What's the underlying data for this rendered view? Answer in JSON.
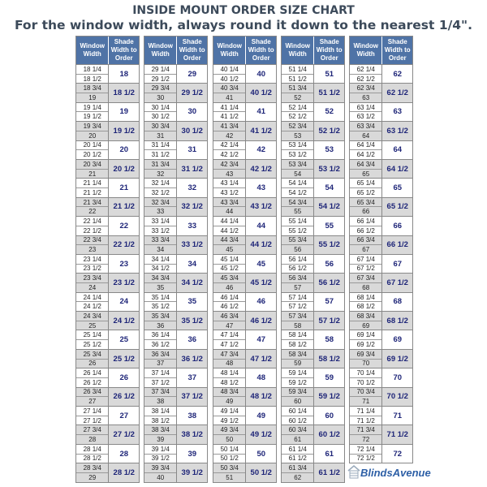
{
  "title": "INSIDE MOUNT ORDER SIZE CHART",
  "subtitle": "For the window width, always round it down to the nearest 1/4\".",
  "header": {
    "window": "Window Width",
    "shade": "Shade Width to Order"
  },
  "colors": {
    "header_bg": "#4f73a6",
    "alt_row": "#d9d9d9",
    "shade_text": "#1e2578"
  },
  "logo": "BlindsAvenue",
  "columns": [
    {
      "groups": [
        [
          "18",
          "18 1/4",
          "18 1/2"
        ],
        [
          "18 1/2",
          "18 3/4",
          "19"
        ],
        [
          "19",
          "19 1/4",
          "19 1/2"
        ],
        [
          "19 1/2",
          "19 3/4",
          "20"
        ],
        [
          "20",
          "20 1/4",
          "20 1/2"
        ],
        [
          "20 1/2",
          "20 3/4",
          "21"
        ],
        [
          "21",
          "21 1/4",
          "21 1/2"
        ],
        [
          "21 1/2",
          "21 3/4",
          "22"
        ],
        [
          "22",
          "22 1/4",
          "22 1/2"
        ],
        [
          "22 1/2",
          "22 3/4",
          "23"
        ],
        [
          "23",
          "23 1/4",
          "23 1/2"
        ],
        [
          "23 1/2",
          "23 3/4",
          "24"
        ],
        [
          "24",
          "24 1/4",
          "24 1/2"
        ],
        [
          "24 1/2",
          "24 3/4",
          "25"
        ],
        [
          "25",
          "25 1/4",
          "25 1/2"
        ],
        [
          "25 1/2",
          "25 3/4",
          "26"
        ],
        [
          "26",
          "26 1/4",
          "26 1/2"
        ],
        [
          "26 1/2",
          "26 3/4",
          "27"
        ],
        [
          "27",
          "27 1/4",
          "27 1/2"
        ],
        [
          "27 1/2",
          "27 3/4",
          "28"
        ],
        [
          "28",
          "28 1/4",
          "28 1/2"
        ],
        [
          "28 1/2",
          "28 3/4",
          "29"
        ]
      ]
    },
    {
      "groups": [
        [
          "29",
          "29 1/4",
          "29 1/2"
        ],
        [
          "29 1/2",
          "29 3/4",
          "30"
        ],
        [
          "30",
          "30 1/4",
          "30 1/2"
        ],
        [
          "30 1/2",
          "30 3/4",
          "31"
        ],
        [
          "31",
          "31 1/4",
          "31 1/2"
        ],
        [
          "31 1/2",
          "31 3/4",
          "32"
        ],
        [
          "32",
          "32 1/4",
          "32 1/2"
        ],
        [
          "32 1/2",
          "32 3/4",
          "33"
        ],
        [
          "33",
          "33 1/4",
          "33 1/2"
        ],
        [
          "33 1/2",
          "33 3/4",
          "34"
        ],
        [
          "34",
          "34 1/4",
          "34 1/2"
        ],
        [
          "34 1/2",
          "34 3/4",
          "35"
        ],
        [
          "35",
          "35 1/4",
          "35 1/2"
        ],
        [
          "35 1/2",
          "35 3/4",
          "36"
        ],
        [
          "36",
          "36 1/4",
          "36 1/2"
        ],
        [
          "36 1/2",
          "36 3/4",
          "37"
        ],
        [
          "37",
          "37 1/4",
          "37 1/2"
        ],
        [
          "37 1/2",
          "37 3/4",
          "38"
        ],
        [
          "38",
          "38 1/4",
          "38 1/2"
        ],
        [
          "38 1/2",
          "38 3/4",
          "39"
        ],
        [
          "39",
          "39 1/4",
          "39 1/2"
        ],
        [
          "39 1/2",
          "39 3/4",
          "40"
        ]
      ]
    },
    {
      "groups": [
        [
          "40",
          "40 1/4",
          "40 1/2"
        ],
        [
          "40 1/2",
          "40 3/4",
          "41"
        ],
        [
          "41",
          "41 1/4",
          "41 1/2"
        ],
        [
          "41 1/2",
          "41 3/4",
          "42"
        ],
        [
          "42",
          "42 1/4",
          "42 1/2"
        ],
        [
          "42 1/2",
          "42 3/4",
          "43"
        ],
        [
          "43",
          "43 1/4",
          "43 1/2"
        ],
        [
          "43 1/2",
          "43 3/4",
          "44"
        ],
        [
          "44",
          "44 1/4",
          "44 1/2"
        ],
        [
          "44 1/2",
          "44 3/4",
          "45"
        ],
        [
          "45",
          "45 1/4",
          "45 1/2"
        ],
        [
          "45 1/2",
          "45 3/4",
          "46"
        ],
        [
          "46",
          "46 1/4",
          "46 1/2"
        ],
        [
          "46 1/2",
          "46 3/4",
          "47"
        ],
        [
          "47",
          "47 1/4",
          "47 1/2"
        ],
        [
          "47 1/2",
          "47 3/4",
          "48"
        ],
        [
          "48",
          "48 1/4",
          "48 1/2"
        ],
        [
          "48 1/2",
          "48 3/4",
          "49"
        ],
        [
          "49",
          "49 1/4",
          "49 1/2"
        ],
        [
          "49 1/2",
          "49 3/4",
          "50"
        ],
        [
          "50",
          "50 1/4",
          "50 1/2"
        ],
        [
          "50 1/2",
          "50 3/4",
          "51"
        ]
      ]
    },
    {
      "groups": [
        [
          "51",
          "51 1/4",
          "51 1/2"
        ],
        [
          "51 1/2",
          "51 3/4",
          "52"
        ],
        [
          "52",
          "52 1/4",
          "52 1/2"
        ],
        [
          "52 1/2",
          "52 3/4",
          "53"
        ],
        [
          "53",
          "53 1/4",
          "53 1/2"
        ],
        [
          "53 1/2",
          "53 3/4",
          "54"
        ],
        [
          "54",
          "54 1/4",
          "54 1/2"
        ],
        [
          "54 1/2",
          "54 3/4",
          "55"
        ],
        [
          "55",
          "55 1/4",
          "55 1/2"
        ],
        [
          "55 1/2",
          "55 3/4",
          "56"
        ],
        [
          "56",
          "56 1/4",
          "56 1/2"
        ],
        [
          "56 1/2",
          "56 3/4",
          "57"
        ],
        [
          "57",
          "57 1/4",
          "57 1/2"
        ],
        [
          "57 1/2",
          "57 3/4",
          "58"
        ],
        [
          "58",
          "58 1/4",
          "58 1/2"
        ],
        [
          "58 1/2",
          "58 3/4",
          "59"
        ],
        [
          "59",
          "59 1/4",
          "59 1/2"
        ],
        [
          "59 1/2",
          "59 3/4",
          "60"
        ],
        [
          "60",
          "60 1/4",
          "60 1/2"
        ],
        [
          "60 1/2",
          "60 3/4",
          "61"
        ],
        [
          "61",
          "61 1/4",
          "61 1/2"
        ],
        [
          "61 1/2",
          "61 3/4",
          "62"
        ]
      ]
    },
    {
      "groups": [
        [
          "62",
          "62 1/4",
          "62 1/2"
        ],
        [
          "62 1/2",
          "62 3/4",
          "63"
        ],
        [
          "63",
          "63 1/4",
          "63 1/2"
        ],
        [
          "63 1/2",
          "63 3/4",
          "64"
        ],
        [
          "64",
          "64 1/4",
          "64 1/2"
        ],
        [
          "64 1/2",
          "64 3/4",
          "65"
        ],
        [
          "65",
          "65 1/4",
          "65 1/2"
        ],
        [
          "65 1/2",
          "65 3/4",
          "66"
        ],
        [
          "66",
          "66 1/4",
          "66 1/2"
        ],
        [
          "66 1/2",
          "66 3/4",
          "67"
        ],
        [
          "67",
          "67 1/4",
          "67 1/2"
        ],
        [
          "67 1/2",
          "67 3/4",
          "68"
        ],
        [
          "68",
          "68 1/4",
          "68 1/2"
        ],
        [
          "68 1/2",
          "68 3/4",
          "69"
        ],
        [
          "69",
          "69 1/4",
          "69 1/2"
        ],
        [
          "69 1/2",
          "69 3/4",
          "70"
        ],
        [
          "70",
          "70 1/4",
          "70 1/2"
        ],
        [
          "70 1/2",
          "70 3/4",
          "71"
        ],
        [
          "71",
          "71 1/4",
          "71 1/2"
        ],
        [
          "71 1/2",
          "71 3/4",
          "72"
        ],
        [
          "72",
          "72 1/4",
          "72 1/2"
        ]
      ]
    }
  ]
}
